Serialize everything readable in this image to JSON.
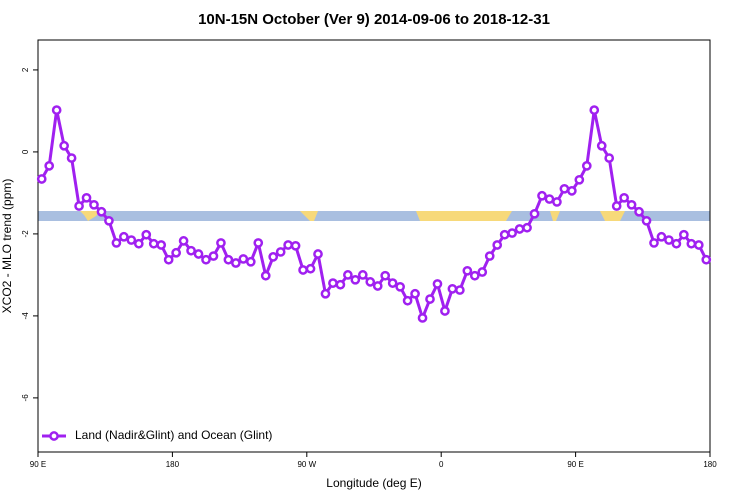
{
  "chart_data": {
    "type": "line",
    "title": "10N-15N October (Ver 9)   2014-09-06 to 2018-12-31",
    "x_label": "Longitude (deg E)",
    "y_label": "XCO2 - MLO trend (ppm)",
    "xlim": [
      90,
      540
    ],
    "ylim": [
      -7.32,
      2.73
    ],
    "xticks": [
      {
        "value": 90,
        "label": "90 E"
      },
      180,
      {
        "value": 270,
        "label": "90 W"
      },
      {
        "value": 360,
        "label": "0"
      },
      {
        "value": 450,
        "label": "90 E"
      },
      {
        "value": 540,
        "label": "180"
      }
    ],
    "yticks": [
      -6,
      -4,
      -2,
      0,
      2
    ],
    "legend": "bottom-left",
    "x": [
      92.5,
      97.5,
      102.5,
      107.5,
      112.5,
      117.5,
      122.5,
      127.5,
      132.5,
      137.5,
      142.5,
      147.5,
      152.5,
      157.5,
      162.5,
      167.5,
      172.5,
      177.5,
      182.5,
      187.5,
      192.5,
      197.5,
      202.5,
      207.5,
      212.5,
      217.5,
      222.5,
      227.5,
      232.5,
      237.5,
      242.5,
      247.5,
      252.5,
      257.5,
      262.5,
      267.5,
      272.5,
      277.5,
      282.5,
      287.5,
      292.5,
      297.5,
      302.5,
      307.5,
      312.5,
      317.5,
      322.5,
      327.5,
      332.5,
      337.5,
      342.5,
      347.5,
      352.5,
      357.5,
      362.5,
      367.5,
      372.5,
      377.5,
      382.5,
      387.5,
      392.5,
      397.5,
      402.5,
      407.5,
      412.5,
      417.5,
      422.5,
      427.5,
      432.5,
      437.5,
      442.5,
      447.5,
      452.5,
      457.5,
      462.5,
      467.5,
      472.5,
      477.5,
      482.5,
      487.5,
      492.5,
      497.5,
      502.5,
      507.5,
      512.5,
      517.5,
      522.5,
      527.5,
      532.5,
      537.5
    ],
    "series": [
      {
        "name": "Land (Nadir&Glint) and Ocean (Glint)",
        "color": "#a020f0",
        "values": [
          -0.66,
          -0.34,
          1.02,
          0.15,
          -0.15,
          -1.32,
          -1.12,
          -1.29,
          -1.46,
          -1.68,
          -2.22,
          -2.07,
          -2.15,
          -2.24,
          -2.02,
          -2.24,
          -2.27,
          -2.63,
          -2.46,
          -2.17,
          -2.41,
          -2.49,
          -2.63,
          -2.54,
          -2.22,
          -2.63,
          -2.71,
          -2.61,
          -2.68,
          -2.22,
          -3.02,
          -2.56,
          -2.44,
          -2.27,
          -2.29,
          -2.88,
          -2.85,
          -2.49,
          -3.46,
          -3.2,
          -3.24,
          -3.0,
          -3.12,
          -3.0,
          -3.17,
          -3.27,
          -3.02,
          -3.2,
          -3.29,
          -3.63,
          -3.46,
          -4.05,
          -3.59,
          -3.22,
          -3.88,
          -3.34,
          -3.37,
          -2.9,
          -3.02,
          -2.93,
          -2.54,
          -2.27,
          -2.02,
          -1.98,
          -1.88,
          -1.85,
          -1.51,
          -1.07,
          -1.15,
          -1.22,
          -0.9,
          -0.95,
          -0.68,
          -0.34,
          1.02,
          0.15,
          -0.15,
          -1.32,
          -1.12,
          -1.29,
          -1.46,
          -1.68,
          -2.22,
          -2.07,
          -2.15,
          -2.24,
          -2.02,
          -2.24,
          -2.27,
          -2.63
        ]
      }
    ]
  }
}
